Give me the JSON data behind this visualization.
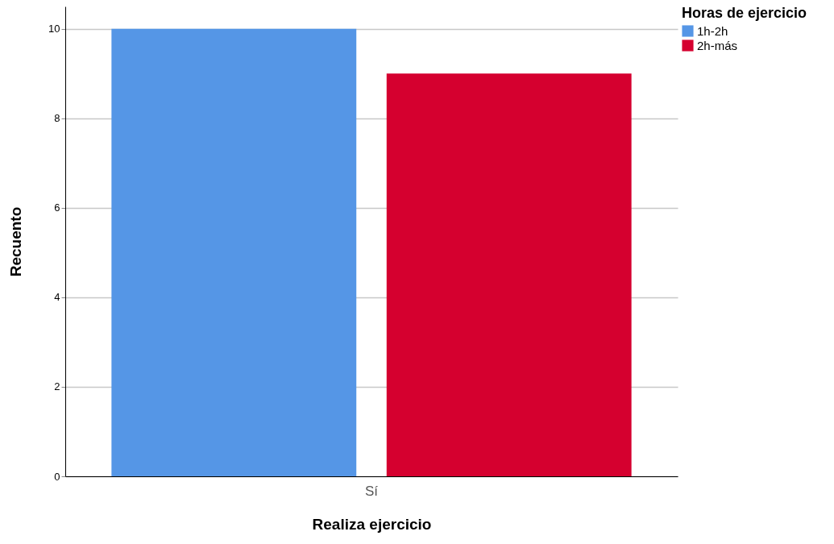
{
  "chart_data": {
    "type": "bar",
    "xlabel": "Realiza ejercicio",
    "ylabel": "Recuento",
    "legend_title": "Horas de ejercicio",
    "categories": [
      "Sí"
    ],
    "series": [
      {
        "name": "1h-2h",
        "color": "#5596e6",
        "values": [
          10
        ]
      },
      {
        "name": "2h-más",
        "color": "#d5002f",
        "values": [
          9
        ]
      }
    ],
    "ylim": [
      0,
      10.5
    ],
    "yticks": [
      0,
      2,
      4,
      6,
      8,
      10
    ],
    "grid": "y",
    "legend": "top right"
  }
}
